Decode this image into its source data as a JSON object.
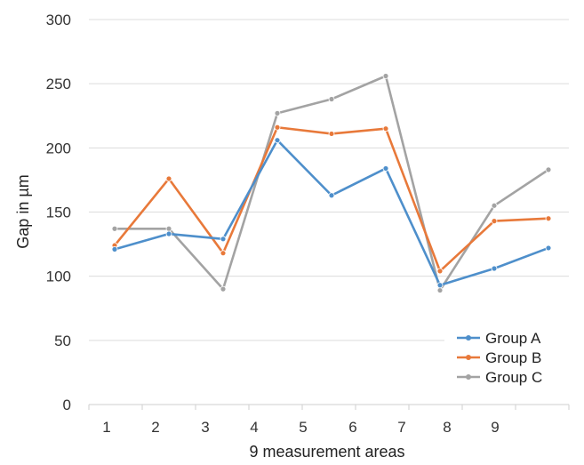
{
  "chart_data": {
    "type": "line",
    "title": "",
    "xlabel": "9 measurement areas",
    "ylabel": "Gap in µm",
    "ylim": [
      0,
      300
    ],
    "yticks": [
      0,
      50,
      100,
      150,
      200,
      250,
      300
    ],
    "xtick_labels": [
      "1",
      "2",
      "3",
      "4",
      "5",
      "6",
      "7",
      "8",
      "9"
    ],
    "grid": "horizontal",
    "legend_position": "bottom-right",
    "series": [
      {
        "name": "Group A",
        "color": "#4e8fcb",
        "values": [
          121,
          133,
          129,
          206,
          163,
          184,
          93,
          106,
          122
        ]
      },
      {
        "name": "Group B",
        "color": "#e8793a",
        "values": [
          124,
          176,
          118,
          216,
          211,
          215,
          104,
          143,
          145
        ]
      },
      {
        "name": "Group C",
        "color": "#a3a3a3",
        "values": [
          137,
          137,
          90,
          227,
          238,
          256,
          89,
          155,
          183
        ]
      }
    ]
  }
}
